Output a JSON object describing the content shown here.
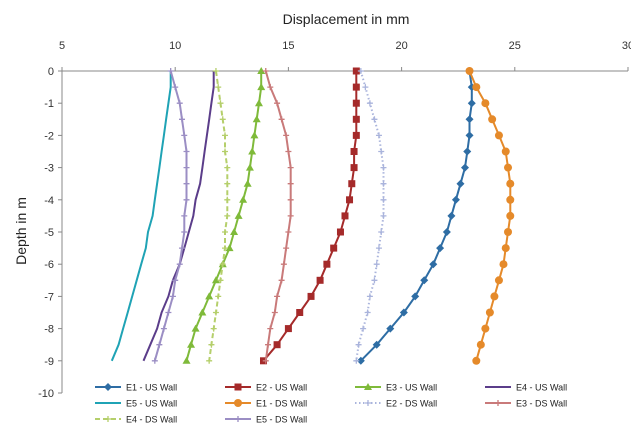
{
  "chart_data": {
    "type": "line",
    "xlabel": "Displacement in mm",
    "ylabel": "Depth in m",
    "xlim": [
      5,
      30
    ],
    "ylim": [
      -10,
      0
    ],
    "x_ticks": [
      "5",
      "10",
      "15",
      "20",
      "25",
      "30"
    ],
    "y_ticks": [
      "0",
      "-1",
      "-2",
      "-3",
      "-4",
      "-5",
      "-6",
      "-7",
      "-8",
      "-9",
      "-10"
    ],
    "x_axis_position": "top",
    "grid": false,
    "legend_position": "bottom",
    "depths": [
      0,
      -0.5,
      -1,
      -1.5,
      -2,
      -2.5,
      -3,
      -3.5,
      -4,
      -4.5,
      -5,
      -5.5,
      -6,
      -6.5,
      -7,
      -7.5,
      -8,
      -8.5,
      -9
    ],
    "series": [
      {
        "name": "E1 - US Wall",
        "color": "#2e6da4",
        "marker": "diamond",
        "dash": "solid",
        "values": [
          23.0,
          23.1,
          23.1,
          23.0,
          23.0,
          22.9,
          22.8,
          22.6,
          22.4,
          22.2,
          22.0,
          21.7,
          21.4,
          21.0,
          20.6,
          20.1,
          19.5,
          18.9,
          18.2
        ]
      },
      {
        "name": "E2 - US Wall",
        "color": "#a52a2a",
        "marker": "square",
        "dash": "solid",
        "values": [
          18.0,
          18.0,
          18.0,
          18.0,
          18.0,
          17.9,
          17.9,
          17.8,
          17.7,
          17.5,
          17.3,
          17.0,
          16.7,
          16.4,
          16.0,
          15.5,
          15.0,
          14.5,
          13.9
        ]
      },
      {
        "name": "E3 - US Wall",
        "color": "#7fba3a",
        "marker": "triangle",
        "dash": "solid",
        "values": [
          13.8,
          13.8,
          13.7,
          13.6,
          13.5,
          13.4,
          13.3,
          13.2,
          13.0,
          12.8,
          12.6,
          12.4,
          12.1,
          11.8,
          11.5,
          11.2,
          10.9,
          10.7,
          10.5
        ]
      },
      {
        "name": "E4 - US Wall",
        "color": "#5b3d8a",
        "marker": "none",
        "dash": "solid",
        "values": [
          11.7,
          11.7,
          11.6,
          11.5,
          11.4,
          11.3,
          11.2,
          11.1,
          10.9,
          10.8,
          10.6,
          10.4,
          10.2,
          9.9,
          9.7,
          9.4,
          9.2,
          8.9,
          8.6
        ]
      },
      {
        "name": "E5 - US Wall",
        "color": "#1fa3b5",
        "marker": "none",
        "dash": "solid",
        "values": [
          9.8,
          9.8,
          9.7,
          9.6,
          9.5,
          9.4,
          9.3,
          9.2,
          9.1,
          9.0,
          8.8,
          8.7,
          8.5,
          8.3,
          8.1,
          7.9,
          7.7,
          7.5,
          7.2
        ]
      },
      {
        "name": "E1 - DS Wall",
        "color": "#e58a2a",
        "marker": "circle",
        "dash": "solid",
        "values": [
          23.0,
          23.3,
          23.7,
          24.0,
          24.3,
          24.6,
          24.7,
          24.8,
          24.8,
          24.8,
          24.7,
          24.6,
          24.5,
          24.3,
          24.1,
          23.9,
          23.7,
          23.5,
          23.3
        ]
      },
      {
        "name": "E2 - DS Wall",
        "color": "#aab4dc",
        "marker": "plus",
        "dash": "dotted",
        "values": [
          18.2,
          18.4,
          18.6,
          18.8,
          19.0,
          19.1,
          19.2,
          19.2,
          19.2,
          19.2,
          19.1,
          19.0,
          18.9,
          18.8,
          18.6,
          18.5,
          18.3,
          18.1,
          18.0
        ]
      },
      {
        "name": "E3 - DS Wall",
        "color": "#c97a7a",
        "marker": "plus",
        "dash": "solid",
        "values": [
          14.0,
          14.2,
          14.5,
          14.7,
          14.9,
          15.0,
          15.1,
          15.1,
          15.1,
          15.1,
          15.0,
          14.9,
          14.8,
          14.7,
          14.5,
          14.4,
          14.2,
          14.1,
          14.0
        ]
      },
      {
        "name": "E4 - DS Wall",
        "color": "#b5cf6b",
        "marker": "plus",
        "dash": "dashed",
        "values": [
          11.8,
          11.9,
          12.0,
          12.1,
          12.2,
          12.2,
          12.3,
          12.3,
          12.3,
          12.3,
          12.2,
          12.2,
          12.1,
          12.0,
          11.9,
          11.8,
          11.7,
          11.6,
          11.5
        ]
      },
      {
        "name": "E5 - DS Wall",
        "color": "#9b8ec4",
        "marker": "plus",
        "dash": "solid",
        "values": [
          9.8,
          10.0,
          10.2,
          10.3,
          10.4,
          10.5,
          10.5,
          10.5,
          10.5,
          10.4,
          10.4,
          10.3,
          10.2,
          10.0,
          9.9,
          9.7,
          9.5,
          9.3,
          9.1
        ]
      }
    ]
  }
}
